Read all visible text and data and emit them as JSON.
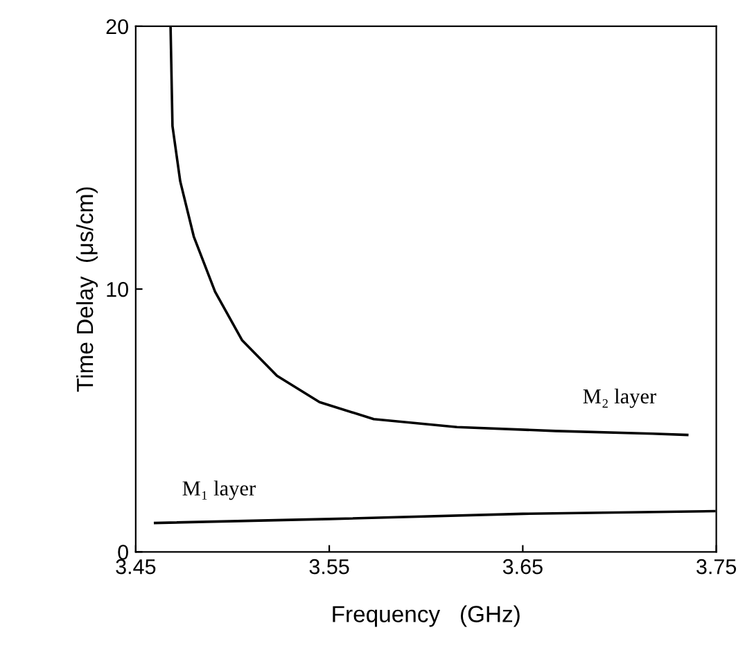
{
  "chart_data": {
    "type": "line",
    "xlabel": "Frequency   (GHz)",
    "ylabel": "Time Delay  (μs/cm)",
    "xlim": [
      3.45,
      3.75
    ],
    "ylim": [
      0,
      20
    ],
    "xticks": [
      3.45,
      3.55,
      3.65,
      3.75
    ],
    "yticks": [
      0,
      10,
      20
    ],
    "grid": false,
    "legend": false,
    "marker": "none",
    "line_style": "solid",
    "series": [
      {
        "color": "#000000",
        "x": [
          3.468,
          3.469,
          3.473,
          3.48,
          3.491,
          3.505,
          3.523,
          3.545,
          3.573,
          3.616,
          3.667,
          3.717,
          3.735
        ],
        "values": [
          20,
          16.2,
          14.1,
          12.0,
          9.9,
          8.05,
          6.7,
          5.7,
          5.05,
          4.75,
          4.6,
          4.5,
          4.45
        ]
      },
      {
        "color": "#000000",
        "x": [
          3.46,
          3.55,
          3.65,
          3.749
        ],
        "values": [
          1.1,
          1.25,
          1.45,
          1.55
        ]
      }
    ],
    "annotations": [
      {
        "text": "M₂ layer",
        "x": 3.667,
        "y": 4.6
      },
      {
        "text": "M₁ layer",
        "x": 3.46,
        "y": 1.1
      }
    ]
  }
}
